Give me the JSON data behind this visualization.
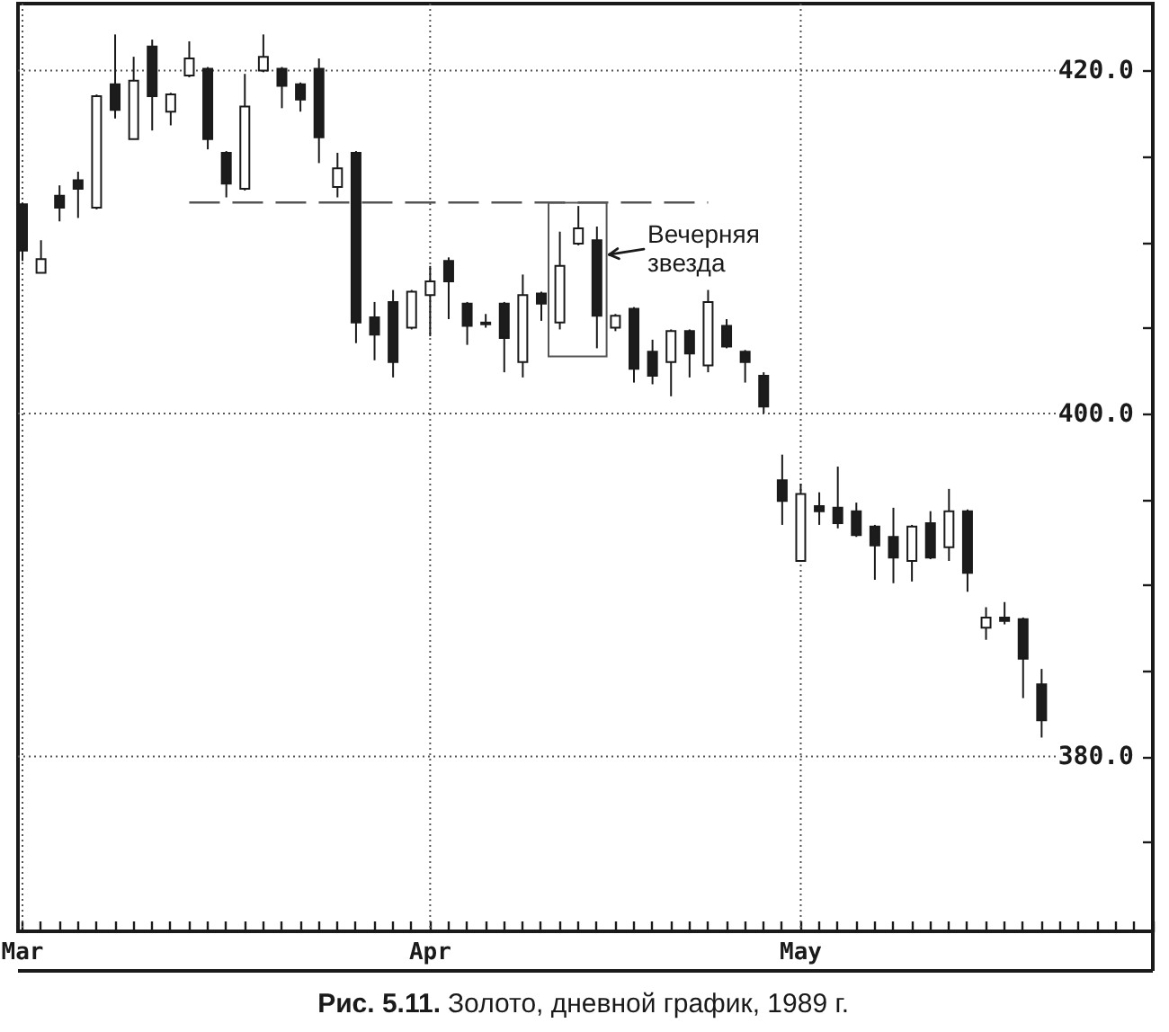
{
  "chart_data": {
    "type": "candlestick",
    "title": "Рис. 5.11.",
    "subtitle": "Золото, дневной график, 1989 г.",
    "categories": [
      "Mar",
      null,
      null,
      null,
      null,
      null,
      null,
      null,
      null,
      null,
      null,
      null,
      null,
      null,
      null,
      null,
      null,
      null,
      null,
      null,
      null,
      null,
      "Apr",
      null,
      null,
      null,
      null,
      null,
      null,
      null,
      null,
      null,
      null,
      null,
      null,
      null,
      null,
      null,
      null,
      null,
      null,
      null,
      "May",
      null,
      null,
      null,
      null,
      null,
      null,
      null,
      null,
      null,
      null,
      null,
      null,
      null,
      null,
      null,
      null,
      null,
      null,
      null
    ],
    "ohlc": [
      [
        412.2,
        412.3,
        408.9,
        409.5
      ],
      [
        408.2,
        410.1,
        408.2,
        409.0
      ],
      [
        412.7,
        413.3,
        411.2,
        412.0
      ],
      [
        413.6,
        414.1,
        411.4,
        413.1
      ],
      [
        412.0,
        418.6,
        411.9,
        418.5
      ],
      [
        419.2,
        422.1,
        417.2,
        417.7
      ],
      [
        416.0,
        420.8,
        416.0,
        419.4
      ],
      [
        421.4,
        421.8,
        416.5,
        418.5
      ],
      [
        417.6,
        418.7,
        416.8,
        418.6
      ],
      [
        419.7,
        421.7,
        419.6,
        420.7
      ],
      [
        420.1,
        420.2,
        415.4,
        416.0
      ],
      [
        415.2,
        415.3,
        412.6,
        413.4
      ],
      [
        413.1,
        419.8,
        413.0,
        417.9
      ],
      [
        420.0,
        422.1,
        419.9,
        420.8
      ],
      [
        420.1,
        420.2,
        417.8,
        419.1
      ],
      [
        419.2,
        419.3,
        417.6,
        418.3
      ],
      [
        420.1,
        420.7,
        414.6,
        416.1
      ],
      [
        413.2,
        415.2,
        412.6,
        414.3
      ],
      [
        415.2,
        415.3,
        404.1,
        405.3
      ],
      [
        405.6,
        406.5,
        403.1,
        404.6
      ],
      [
        406.5,
        407.2,
        402.1,
        403.0
      ],
      [
        405.0,
        407.2,
        404.9,
        407.1
      ],
      [
        406.9,
        408.6,
        404.5,
        407.7
      ],
      [
        408.9,
        409.1,
        405.5,
        407.7
      ],
      [
        406.4,
        406.5,
        404.0,
        405.1
      ],
      [
        405.3,
        405.8,
        405.0,
        405.2
      ],
      [
        406.4,
        406.5,
        402.4,
        404.4
      ],
      [
        403.0,
        408.1,
        402.1,
        406.9
      ],
      [
        407.0,
        407.1,
        405.4,
        406.4
      ],
      [
        405.3,
        410.6,
        404.9,
        408.6
      ],
      [
        409.9,
        412.1,
        409.8,
        410.8
      ],
      [
        410.1,
        410.9,
        403.8,
        405.7
      ],
      [
        405.0,
        405.8,
        404.8,
        405.7
      ],
      [
        406.1,
        406.2,
        401.8,
        402.6
      ],
      [
        403.6,
        404.3,
        401.7,
        402.2
      ],
      [
        403.0,
        404.9,
        401.0,
        404.8
      ],
      [
        404.8,
        404.9,
        402.1,
        403.5
      ],
      [
        402.8,
        407.2,
        402.4,
        406.5
      ],
      [
        405.1,
        405.5,
        403.8,
        403.9
      ],
      [
        403.6,
        403.7,
        401.8,
        403.0
      ],
      [
        402.2,
        402.4,
        400.0,
        400.4
      ],
      [
        396.1,
        397.6,
        393.5,
        394.9
      ],
      [
        391.4,
        395.9,
        391.4,
        395.3
      ],
      [
        394.6,
        395.4,
        393.5,
        394.3
      ],
      [
        394.5,
        396.9,
        393.3,
        393.6
      ],
      [
        394.3,
        394.8,
        392.8,
        392.9
      ],
      [
        393.4,
        393.5,
        390.3,
        392.3
      ],
      [
        392.8,
        394.5,
        390.1,
        391.6
      ],
      [
        391.4,
        393.5,
        390.2,
        393.4
      ],
      [
        393.6,
        394.3,
        391.5,
        391.6
      ],
      [
        392.2,
        395.6,
        391.4,
        394.3
      ],
      [
        394.3,
        394.4,
        389.6,
        390.7
      ],
      [
        387.5,
        388.7,
        386.8,
        388.1
      ],
      [
        388.1,
        389.0,
        387.7,
        387.9
      ],
      [
        388.0,
        388.1,
        383.4,
        385.7
      ],
      [
        384.2,
        385.1,
        381.1,
        382.1
      ],
      null,
      null,
      null,
      null,
      null,
      null
    ],
    "colors": [
      "#1c1c1c",
      "#ffffff",
      "#1c1c1c",
      "#1c1c1c",
      "#ffffff",
      "#1c1c1c",
      "#ffffff",
      "#1c1c1c",
      "#ffffff",
      "#ffffff",
      "#1c1c1c",
      "#1c1c1c",
      "#ffffff",
      "#ffffff",
      "#1c1c1c",
      "#1c1c1c",
      "#1c1c1c",
      "#ffffff",
      "#1c1c1c",
      "#1c1c1c",
      "#1c1c1c",
      "#ffffff",
      "#ffffff",
      "#1c1c1c",
      "#1c1c1c",
      "#1c1c1c",
      "#1c1c1c",
      "#ffffff",
      "#1c1c1c",
      "#ffffff",
      "#ffffff",
      "#1c1c1c",
      "#ffffff",
      "#1c1c1c",
      "#1c1c1c",
      "#ffffff",
      "#1c1c1c",
      "#ffffff",
      "#1c1c1c",
      "#1c1c1c",
      "#1c1c1c",
      "#1c1c1c",
      "#ffffff",
      "#1c1c1c",
      "#1c1c1c",
      "#1c1c1c",
      "#1c1c1c",
      "#1c1c1c",
      "#ffffff",
      "#1c1c1c",
      "#ffffff",
      "#1c1c1c",
      "#ffffff",
      "#1c1c1c",
      "#1c1c1c",
      "#1c1c1c",
      null,
      null,
      null,
      null,
      null,
      null
    ],
    "series": [
      {
        "type": "line",
        "color": "#555555",
        "line_style": "dashed",
        "values": [
          null,
          null,
          null,
          null,
          null,
          null,
          null,
          null,
          null,
          412.3,
          412.3,
          412.3,
          412.3,
          412.3,
          412.3,
          412.3,
          412.3,
          412.3,
          412.3,
          412.3,
          412.3,
          412.3,
          412.3,
          412.3,
          412.3,
          412.3,
          412.3,
          412.3,
          412.3,
          412.3,
          412.3,
          412.3,
          412.3,
          412.3,
          412.3,
          412.3,
          412.3,
          412.3,
          null,
          null,
          null,
          null,
          null,
          null,
          null,
          null,
          null,
          null,
          null,
          null,
          null,
          null,
          null,
          null,
          null,
          null,
          null,
          null,
          null,
          null,
          null,
          null
        ]
      }
    ],
    "ylim": [
      369.8,
      423.9
    ],
    "yticks": [
      {
        "value": 420,
        "label": "420.0"
      },
      {
        "value": 415,
        "label": null
      },
      {
        "value": 410,
        "label": null
      },
      {
        "value": 405,
        "label": null
      },
      {
        "value": 400,
        "label": "400.0"
      },
      {
        "value": 395,
        "label": null
      },
      {
        "value": 390,
        "label": null
      },
      {
        "value": 385,
        "label": null
      },
      {
        "value": 380,
        "label": "380.0"
      },
      {
        "value": 375,
        "label": null
      }
    ],
    "grid": true,
    "annotations": [
      "Вечерняя звезда"
    ]
  }
}
